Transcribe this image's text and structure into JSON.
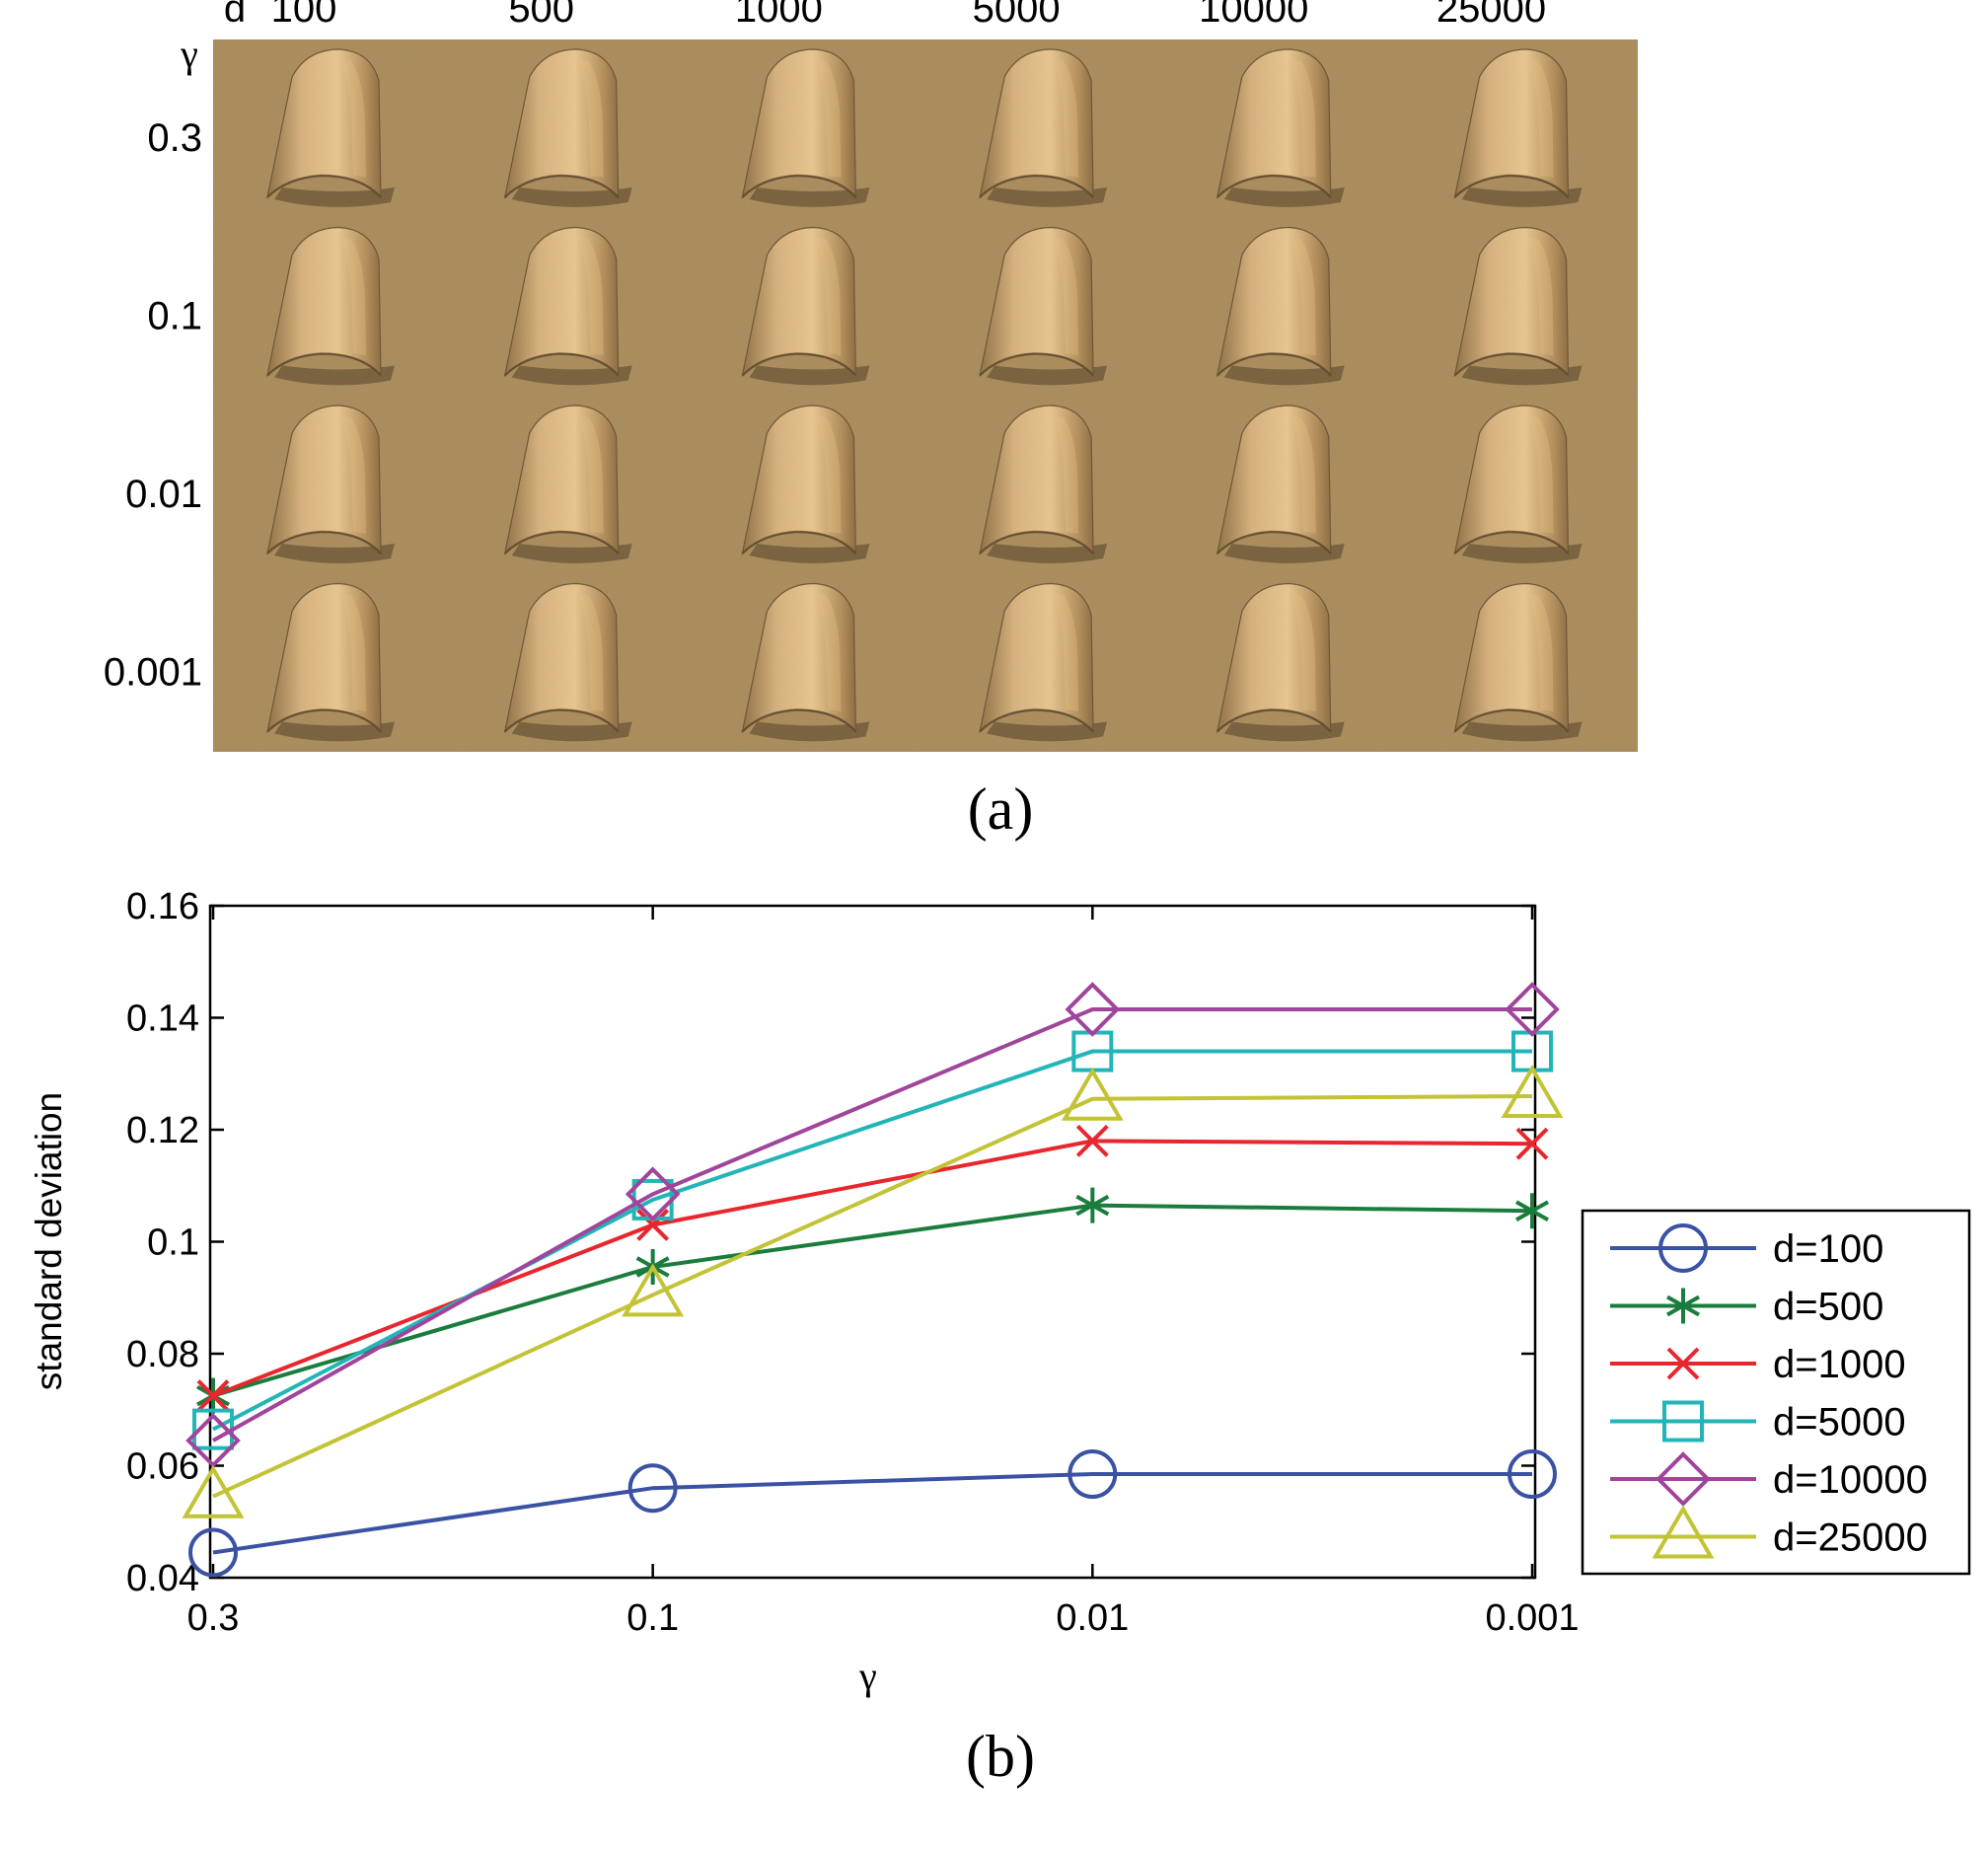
{
  "panel_a": {
    "corner_label_d": "d",
    "corner_label_gamma": "γ",
    "column_labels": [
      "100",
      "500",
      "1000",
      "5000",
      "10000",
      "25000"
    ],
    "row_labels": [
      "0.3",
      "0.1",
      "0.01",
      "0.001"
    ],
    "caption": "(a)",
    "colors": {
      "background": "#a98a58",
      "highlight": "#e7bf82",
      "shadow": "#4f3b20"
    }
  },
  "panel_b": {
    "caption": "(b)"
  },
  "chart_data": {
    "type": "line",
    "categories": [
      "0.3",
      "0.1",
      "0.01",
      "0.001"
    ],
    "xlabel": "γ",
    "ylabel": "standard deviation",
    "ylim": [
      0.04,
      0.16
    ],
    "yticks": [
      "0.04",
      "0.06",
      "0.08",
      "0.1",
      "0.12",
      "0.14",
      "0.16"
    ],
    "grid": false,
    "legend_position": "outside-right",
    "series": [
      {
        "name": "d=100",
        "color": "#3a52a4",
        "marker": "circle",
        "values": [
          0.0445,
          0.056,
          0.0585,
          0.0585
        ]
      },
      {
        "name": "d=500",
        "color": "#1a7c3d",
        "marker": "asterisk",
        "values": [
          0.0725,
          0.0955,
          0.1065,
          0.1055
        ]
      },
      {
        "name": "d=1000",
        "color": "#e8262d",
        "marker": "x",
        "values": [
          0.0725,
          0.103,
          0.118,
          0.1175
        ]
      },
      {
        "name": "d=5000",
        "color": "#22b5b8",
        "marker": "square",
        "values": [
          0.0665,
          0.1075,
          0.134,
          0.134
        ]
      },
      {
        "name": "d=10000",
        "color": "#a0449c",
        "marker": "diamond",
        "values": [
          0.0645,
          0.1085,
          0.1415,
          0.1415
        ]
      },
      {
        "name": "d=25000",
        "color": "#c2c335",
        "marker": "triangle",
        "values": [
          0.0545,
          0.0905,
          0.1255,
          0.126
        ]
      }
    ]
  }
}
